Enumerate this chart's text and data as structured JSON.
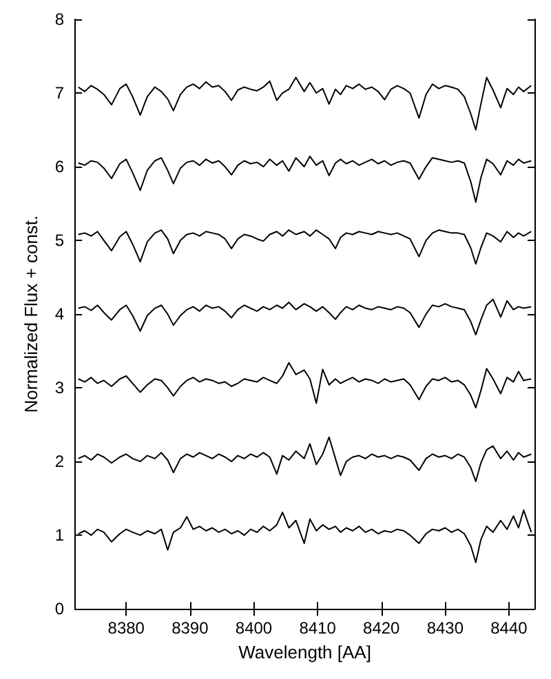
{
  "chart_data": {
    "type": "line",
    "xlabel": "Wavelength [AA]",
    "ylabel": "Normalized Flux + const.",
    "xlim": [
      8372,
      8444
    ],
    "ylim": [
      0,
      8
    ],
    "xticks": [
      8380,
      8390,
      8400,
      8410,
      8420,
      8430,
      8440
    ],
    "yticks": [
      0,
      1,
      2,
      3,
      4,
      5,
      6,
      7,
      8
    ],
    "grid": false,
    "x": [
      8372.5,
      8373.5,
      8374.5,
      8375.5,
      8376.5,
      8377.7,
      8379,
      8380,
      8381,
      8382.2,
      8383.3,
      8384.5,
      8385.5,
      8386.5,
      8387.4,
      8388.5,
      8389.5,
      8390.5,
      8391.5,
      8392.5,
      8393.5,
      8394.5,
      8395.5,
      8396.5,
      8397.5,
      8398.5,
      8399.5,
      8400.5,
      8401.5,
      8402.5,
      8403.6,
      8404.5,
      8405.5,
      8406.6,
      8407.9,
      8408.8,
      8409.8,
      8410.8,
      8411.8,
      8412.8,
      8413.6,
      8414.5,
      8415.5,
      8416.5,
      8417.5,
      8418.5,
      8419.5,
      8420.5,
      8421.5,
      8422.5,
      8423.5,
      8424.5,
      8425.9,
      8427,
      8428,
      8429,
      8430,
      8431,
      8432,
      8433,
      8434,
      8434.8,
      8435.6,
      8436.5,
      8437.5,
      8438.7,
      8439.7,
      8440.7,
      8441.5,
      8442.3,
      8443.5
    ],
    "series": [
      {
        "color": "#000000",
        "values": [
          7.08,
          7.02,
          7.1,
          7.05,
          6.98,
          6.84,
          7.06,
          7.12,
          6.95,
          6.7,
          6.95,
          7.08,
          7.02,
          6.92,
          6.76,
          6.98,
          7.08,
          7.12,
          7.06,
          7.15,
          7.08,
          7.1,
          7.02,
          6.9,
          7.04,
          7.08,
          7.05,
          7.03,
          7.08,
          7.16,
          6.9,
          7.0,
          7.05,
          7.21,
          7.02,
          7.14,
          7.0,
          7.06,
          6.85,
          7.05,
          6.98,
          7.1,
          7.06,
          7.12,
          7.05,
          7.08,
          7.02,
          6.91,
          7.05,
          7.1,
          7.06,
          7.0,
          6.66,
          6.98,
          7.12,
          7.06,
          7.1,
          7.08,
          7.05,
          6.95,
          6.72,
          6.5,
          6.85,
          7.21,
          7.04,
          6.8,
          7.06,
          6.98,
          7.08,
          7.02,
          7.1
        ]
      },
      {
        "color": "#000000",
        "values": [
          6.05,
          6.02,
          6.08,
          6.06,
          5.98,
          5.84,
          6.04,
          6.1,
          5.92,
          5.68,
          5.95,
          6.08,
          6.12,
          5.95,
          5.77,
          5.98,
          6.06,
          6.08,
          6.02,
          6.1,
          6.05,
          6.08,
          6.0,
          5.89,
          6.02,
          6.08,
          6.04,
          6.06,
          6.0,
          6.1,
          6.02,
          6.08,
          5.94,
          6.12,
          6.0,
          6.14,
          6.02,
          6.08,
          5.88,
          6.05,
          6.1,
          6.04,
          6.08,
          6.02,
          6.06,
          6.1,
          6.04,
          6.08,
          6.02,
          6.06,
          6.08,
          6.05,
          5.83,
          6.0,
          6.12,
          6.1,
          6.08,
          6.06,
          6.08,
          6.05,
          5.8,
          5.52,
          5.85,
          6.1,
          6.04,
          5.89,
          6.08,
          6.02,
          6.1,
          6.05,
          6.08
        ]
      },
      {
        "color": "#000000",
        "values": [
          5.08,
          5.1,
          5.06,
          5.12,
          5.0,
          4.86,
          5.05,
          5.12,
          4.95,
          4.71,
          4.98,
          5.1,
          5.14,
          5.02,
          4.82,
          5.0,
          5.08,
          5.1,
          5.06,
          5.12,
          5.1,
          5.08,
          5.02,
          4.89,
          5.02,
          5.08,
          5.06,
          5.02,
          4.99,
          5.08,
          5.12,
          5.06,
          5.14,
          5.08,
          5.12,
          5.06,
          5.14,
          5.08,
          5.02,
          4.89,
          5.04,
          5.1,
          5.08,
          5.12,
          5.1,
          5.08,
          5.12,
          5.1,
          5.08,
          5.1,
          5.06,
          5.02,
          4.78,
          5.0,
          5.1,
          5.14,
          5.12,
          5.1,
          5.1,
          5.08,
          4.9,
          4.68,
          4.9,
          5.1,
          5.06,
          4.98,
          5.12,
          5.04,
          5.1,
          5.06,
          5.12
        ]
      },
      {
        "color": "#000000",
        "values": [
          4.08,
          4.1,
          4.05,
          4.12,
          4.02,
          3.92,
          4.06,
          4.12,
          3.98,
          3.77,
          3.98,
          4.08,
          4.12,
          4.0,
          3.85,
          3.98,
          4.06,
          4.1,
          4.04,
          4.12,
          4.08,
          4.1,
          4.04,
          3.95,
          4.06,
          4.12,
          4.08,
          4.04,
          4.1,
          4.06,
          4.12,
          4.08,
          4.16,
          4.06,
          4.14,
          4.1,
          4.04,
          4.1,
          4.02,
          3.93,
          4.02,
          4.1,
          4.06,
          4.12,
          4.08,
          4.06,
          4.1,
          4.08,
          4.06,
          4.1,
          4.08,
          4.02,
          3.82,
          4.0,
          4.12,
          4.1,
          4.14,
          4.1,
          4.08,
          4.06,
          3.9,
          3.72,
          3.92,
          4.12,
          4.2,
          3.96,
          4.18,
          4.06,
          4.1,
          4.08,
          4.1
        ]
      },
      {
        "color": "#000000",
        "values": [
          3.12,
          3.08,
          3.14,
          3.06,
          3.1,
          3.02,
          3.12,
          3.16,
          3.06,
          2.94,
          3.04,
          3.12,
          3.1,
          3.0,
          2.89,
          3.02,
          3.1,
          3.14,
          3.08,
          3.12,
          3.1,
          3.06,
          3.08,
          3.02,
          3.06,
          3.12,
          3.1,
          3.08,
          3.14,
          3.1,
          3.06,
          3.16,
          3.34,
          3.18,
          3.24,
          3.12,
          2.79,
          3.25,
          3.04,
          3.12,
          3.06,
          3.1,
          3.14,
          3.08,
          3.12,
          3.1,
          3.06,
          3.12,
          3.08,
          3.1,
          3.12,
          3.04,
          2.84,
          3.02,
          3.12,
          3.1,
          3.14,
          3.08,
          3.1,
          3.04,
          2.9,
          2.73,
          2.96,
          3.26,
          3.12,
          2.92,
          3.14,
          3.08,
          3.22,
          3.1,
          3.12
        ]
      },
      {
        "color": "#000000",
        "values": [
          2.04,
          2.08,
          2.02,
          2.1,
          2.06,
          1.98,
          2.06,
          2.1,
          2.04,
          2.0,
          2.08,
          2.04,
          2.12,
          2.02,
          1.85,
          2.04,
          2.1,
          2.06,
          2.12,
          2.08,
          2.04,
          2.1,
          2.06,
          2.0,
          2.08,
          2.04,
          2.1,
          2.06,
          2.12,
          2.06,
          1.83,
          2.08,
          2.02,
          2.14,
          2.04,
          2.24,
          1.96,
          2.1,
          2.33,
          2.04,
          1.81,
          2.0,
          2.06,
          2.08,
          2.04,
          2.1,
          2.06,
          2.08,
          2.04,
          2.08,
          2.06,
          2.02,
          1.88,
          2.04,
          2.1,
          2.06,
          2.08,
          2.04,
          2.1,
          2.06,
          1.92,
          1.73,
          1.98,
          2.16,
          2.21,
          2.04,
          2.14,
          2.02,
          2.12,
          2.06,
          2.1
        ]
      },
      {
        "color": "#000000",
        "values": [
          1.02,
          1.06,
          1.0,
          1.08,
          1.04,
          0.91,
          1.02,
          1.08,
          1.04,
          1.0,
          1.06,
          1.02,
          1.08,
          0.8,
          1.04,
          1.1,
          1.25,
          1.08,
          1.12,
          1.06,
          1.1,
          1.04,
          1.08,
          1.02,
          1.06,
          1.0,
          1.08,
          1.04,
          1.12,
          1.06,
          1.14,
          1.31,
          1.1,
          1.2,
          0.89,
          1.22,
          1.06,
          1.14,
          1.08,
          1.12,
          1.04,
          1.1,
          1.06,
          1.12,
          1.04,
          1.08,
          1.02,
          1.06,
          1.04,
          1.08,
          1.06,
          1.0,
          0.89,
          1.02,
          1.08,
          1.06,
          1.1,
          1.04,
          1.08,
          1.02,
          0.86,
          0.63,
          0.94,
          1.12,
          1.04,
          1.2,
          1.08,
          1.26,
          1.1,
          1.34,
          1.04
        ]
      }
    ]
  }
}
